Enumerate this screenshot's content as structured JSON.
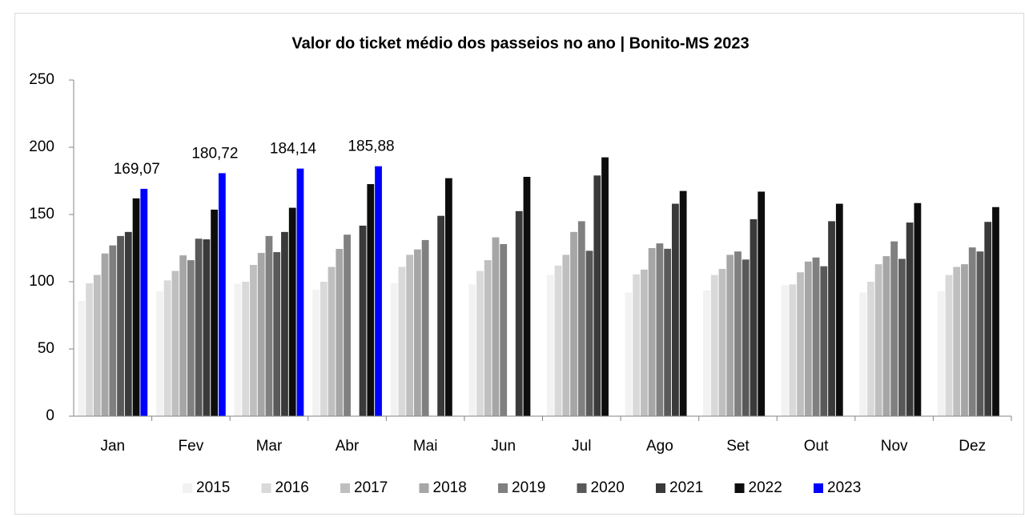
{
  "chart_data": {
    "type": "bar",
    "title": "Valor do ticket médio dos passeios no ano | Bonito-MS 2023",
    "categories": [
      "Jan",
      "Fev",
      "Mar",
      "Abr",
      "Mai",
      "Jun",
      "Jul",
      "Ago",
      "Set",
      "Out",
      "Nov",
      "Dez"
    ],
    "ylim": [
      0,
      250
    ],
    "yticks": [
      0,
      50,
      100,
      150,
      200,
      250
    ],
    "grid": false,
    "legend": "bottom",
    "series": [
      {
        "name": "2015",
        "color": "#f2f2f2",
        "values": [
          85.7,
          93,
          98.5,
          94,
          99,
          98,
          105,
          92,
          93.5,
          97.5,
          92,
          93
        ]
      },
      {
        "name": "2016",
        "color": "#d9d9d9",
        "values": [
          98.8,
          101,
          100,
          100,
          111,
          108,
          112,
          105.5,
          105,
          98,
          100,
          105
        ]
      },
      {
        "name": "2017",
        "color": "#bfbfbf",
        "values": [
          105,
          108,
          112.5,
          111,
          120,
          116,
          120,
          109,
          109.5,
          107,
          113,
          111
        ]
      },
      {
        "name": "2018",
        "color": "#a6a6a6",
        "values": [
          121,
          119.6,
          121.4,
          124.4,
          124,
          133,
          137,
          125,
          120,
          115,
          119,
          113
        ]
      },
      {
        "name": "2019",
        "color": "#808080",
        "values": [
          127,
          116,
          134,
          135,
          131,
          128,
          145,
          128.5,
          122.5,
          118,
          130,
          125.5
        ]
      },
      {
        "name": "2020",
        "color": "#595959",
        "values": [
          134,
          132,
          122,
          null,
          null,
          null,
          123,
          124.5,
          116.5,
          111.5,
          117,
          122.5
        ]
      },
      {
        "name": "2021",
        "color": "#3a3a3a",
        "values": [
          137,
          131.5,
          137,
          141.7,
          149,
          152.5,
          179,
          158,
          146.5,
          145,
          144,
          144.5
        ]
      },
      {
        "name": "2022",
        "color": "#0d0d0d",
        "values": [
          162,
          153.6,
          155,
          172.6,
          177,
          178,
          192.5,
          167.5,
          167,
          158,
          158.5,
          155.5
        ]
      },
      {
        "name": "2023",
        "color": "#0000ff",
        "values": [
          169.07,
          180.72,
          184.14,
          185.88,
          null,
          null,
          null,
          null,
          null,
          null,
          null,
          null
        ],
        "value_labels": [
          "169,07",
          "180,72",
          "184,14",
          "185,88",
          null,
          null,
          null,
          null,
          null,
          null,
          null,
          null
        ]
      }
    ]
  }
}
